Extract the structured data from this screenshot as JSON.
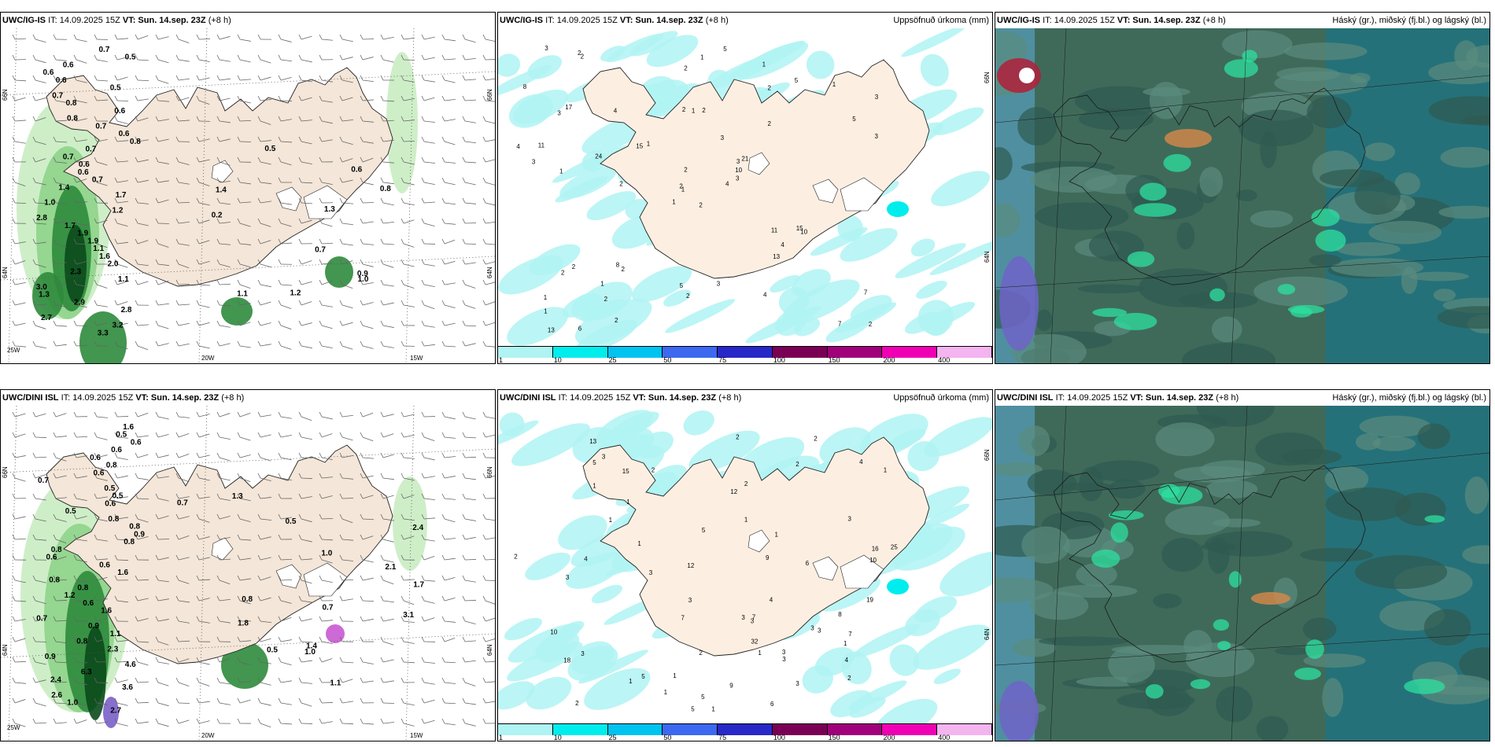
{
  "rows": [
    {
      "model": "UWC/IG-IS",
      "wind_panel": {
        "it": "IT: 14.09.2025 15Z",
        "vt": "VT: Sun. 14.sep. 23Z",
        "lead": "(+8 h)",
        "lat_labels": [
          "66N",
          "64N"
        ],
        "lat_labels_right": [
          "66N",
          "64N"
        ],
        "lon_labels": [
          "25W",
          "20W",
          "15W"
        ],
        "values": [
          "0.7",
          "0.5",
          "0.6",
          "0.6",
          "0.6",
          "0.5",
          "0.7",
          "0.8",
          "0.6",
          "0.8",
          "0.7",
          "0.6",
          "0.8",
          "0.7",
          "0.7",
          "0.6",
          "0.6",
          "0.7",
          "1.4",
          "1.7",
          "1.0",
          "1.2",
          "2.8",
          "1.7",
          "1.9",
          "1.9",
          "1.1",
          "1.6",
          "2.0",
          "2.3",
          "1.1",
          "3.0",
          "1.3",
          "2.9",
          "2.8",
          "2.7",
          "3.2",
          "3.3",
          "0.8",
          "0.9",
          "0.7",
          "1.1",
          "1.0",
          "1.3",
          "0.6",
          "0.2",
          "1.4",
          "1.2",
          "0.5"
        ]
      },
      "precip_panel": {
        "it": "IT: 14.09.2025 15Z",
        "vt": "VT: Sun. 14.sep. 23Z",
        "lead": "(+8 h)",
        "right_title": "Uppsöfnuð úrkoma (mm)",
        "lat_labels": [
          "66N",
          "64N"
        ],
        "values": [
          "2",
          "3",
          "1",
          "1",
          "3",
          "2",
          "1",
          "2",
          "2",
          "4",
          "2",
          "2",
          "1",
          "3",
          "1",
          "2",
          "6",
          "2",
          "3",
          "2",
          "1",
          "1",
          "2",
          "1",
          "21",
          "10",
          "17",
          "2",
          "3",
          "11",
          "3",
          "2",
          "5",
          "2",
          "4",
          "5",
          "8",
          "7",
          "7",
          "15",
          "5",
          "15",
          "24",
          "13",
          "2",
          "4",
          "10",
          "13",
          "2",
          "3",
          "2",
          "5",
          "8",
          "4",
          "4",
          "1",
          "2",
          "3",
          "3",
          "1",
          "1",
          "2",
          "11"
        ],
        "legend_ticks": [
          "1",
          "10",
          "25",
          "50",
          "75",
          "100",
          "150",
          "200",
          "400"
        ],
        "legend_colors": [
          "#b0f3f3",
          "#00eded",
          "#00c3f0",
          "#3c69f0",
          "#2828c8",
          "#7a0055",
          "#a0007a",
          "#f000b4",
          "#f4b4f0"
        ]
      },
      "cloud_panel": {
        "it": "IT: 14.09.2025 15Z",
        "vt": "VT: Sun. 14.sep. 23Z",
        "lead": "(+8 h)",
        "right_title": "Háský (gr.), miðský (fj.bl.) og lágský (bl.)"
      }
    },
    {
      "model": "UWC/DINI ISL",
      "wind_panel": {
        "it": "IT: 14.09.2025 15Z",
        "vt": "VT: Sun. 14.sep. 23Z",
        "lead": "(+8 h)",
        "lat_labels": [
          "66N",
          "64N"
        ],
        "lat_labels_right": [
          "66N",
          "64N"
        ],
        "lon_labels": [
          "25W",
          "20W",
          "15W"
        ],
        "values": [
          "1.6",
          "0.5",
          "0.6",
          "0.6",
          "0.6",
          "0.8",
          "0.6",
          "0.7",
          "0.5",
          "0.5",
          "0.6",
          "0.5",
          "0.8",
          "0.8",
          "0.9",
          "0.8",
          "0.8",
          "0.6",
          "0.6",
          "1.6",
          "0.8",
          "0.8",
          "1.2",
          "0.6",
          "1.6",
          "0.7",
          "0.9",
          "1.1",
          "0.8",
          "2.3",
          "0.9",
          "4.6",
          "6.3",
          "2.4",
          "3.6",
          "2.6",
          "1.0",
          "2.7",
          "1.3",
          "2.4",
          "1.1",
          "1.8",
          "0.7",
          "0.5",
          "2.1",
          "0.5",
          "3.1",
          "0.8",
          "1.0",
          "1.4",
          "1.7",
          "1.0",
          "0.7"
        ]
      },
      "precip_panel": {
        "it": "IT: 14.09.2025 15Z",
        "vt": "VT: Sun. 14.sep. 23Z",
        "lead": "(+8 h)",
        "right_title": "Uppsöfnuð úrkoma (mm)",
        "lat_labels": [
          "66N",
          "64N"
        ],
        "values": [
          "1",
          "4",
          "3",
          "1",
          "2",
          "1",
          "1",
          "2",
          "1",
          "1",
          "1",
          "2",
          "1",
          "2",
          "12",
          "1",
          "3",
          "3",
          "2",
          "3",
          "3",
          "4",
          "5",
          "3",
          "2",
          "1",
          "7",
          "15",
          "18",
          "5",
          "1",
          "2",
          "3",
          "6",
          "12",
          "10",
          "2",
          "16",
          "5",
          "25",
          "13",
          "3",
          "10",
          "9",
          "4",
          "7",
          "6",
          "7",
          "19",
          "9",
          "32",
          "5",
          "4",
          "3",
          "3",
          "1",
          "1",
          "3",
          "8",
          "3",
          "5",
          "3",
          "2"
        ],
        "legend_ticks": [
          "1",
          "10",
          "25",
          "50",
          "75",
          "100",
          "150",
          "200",
          "400"
        ],
        "legend_colors": [
          "#b0f3f3",
          "#00eded",
          "#00c3f0",
          "#3c69f0",
          "#2828c8",
          "#7a0055",
          "#a0007a",
          "#f000b4",
          "#f4b4f0"
        ]
      },
      "cloud_panel": {
        "it": "IT: 14.09.2025 15Z",
        "vt": "VT: Sun. 14.sep. 23Z",
        "lead": "(+8 h)",
        "right_title": "Háský (gr.), miðský (fj.bl.) og lágský (bl.)"
      }
    }
  ]
}
